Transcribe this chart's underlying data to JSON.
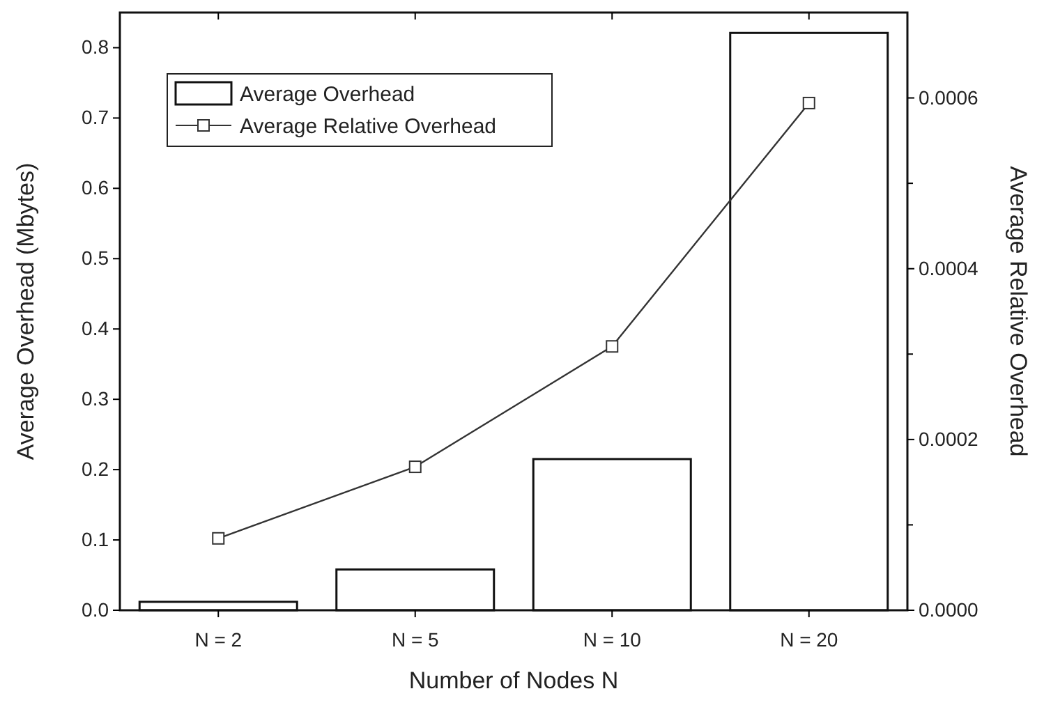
{
  "chart_data": {
    "type": "bar",
    "xlabel": "Number of Nodes N",
    "ylabel": "Average Overhead (Mbytes)",
    "y2label": "Average Relative Overhead",
    "categories": [
      "N = 2",
      "N = 5",
      "N = 10",
      "N = 20"
    ],
    "series": [
      {
        "name": "Average Overhead",
        "color": "#ffffff",
        "values": [
          0.012,
          0.058,
          0.215,
          0.821
        ]
      },
      {
        "name": "Average Relative Overhead",
        "type": "line",
        "axis": "y2",
        "color": "#333333",
        "marker": "square",
        "values": [
          8.42e-05,
          0.000168,
          0.000309,
          0.000594
        ]
      }
    ],
    "ylim": [
      0,
      0.85
    ],
    "yticks": [
      {
        "value": 0,
        "label": "0.0"
      },
      0.1,
      0.2,
      0.3,
      0.4,
      0.5,
      0.6,
      0.7,
      0.8
    ],
    "y2lim": [
      0,
      0.0007
    ],
    "y2ticks": [
      {
        "value": 0,
        "label": "0.0000"
      },
      {
        "value": 0.0001,
        "label": null
      },
      {
        "value": 0.0002,
        "label": "0.0002"
      },
      {
        "value": 0.0003,
        "label": null
      },
      {
        "value": 0.0004,
        "label": "0.0004"
      },
      {
        "value": 0.0005,
        "label": null
      },
      {
        "value": 0.0006,
        "label": "0.0006"
      }
    ],
    "legend": "top left",
    "grid": false
  }
}
